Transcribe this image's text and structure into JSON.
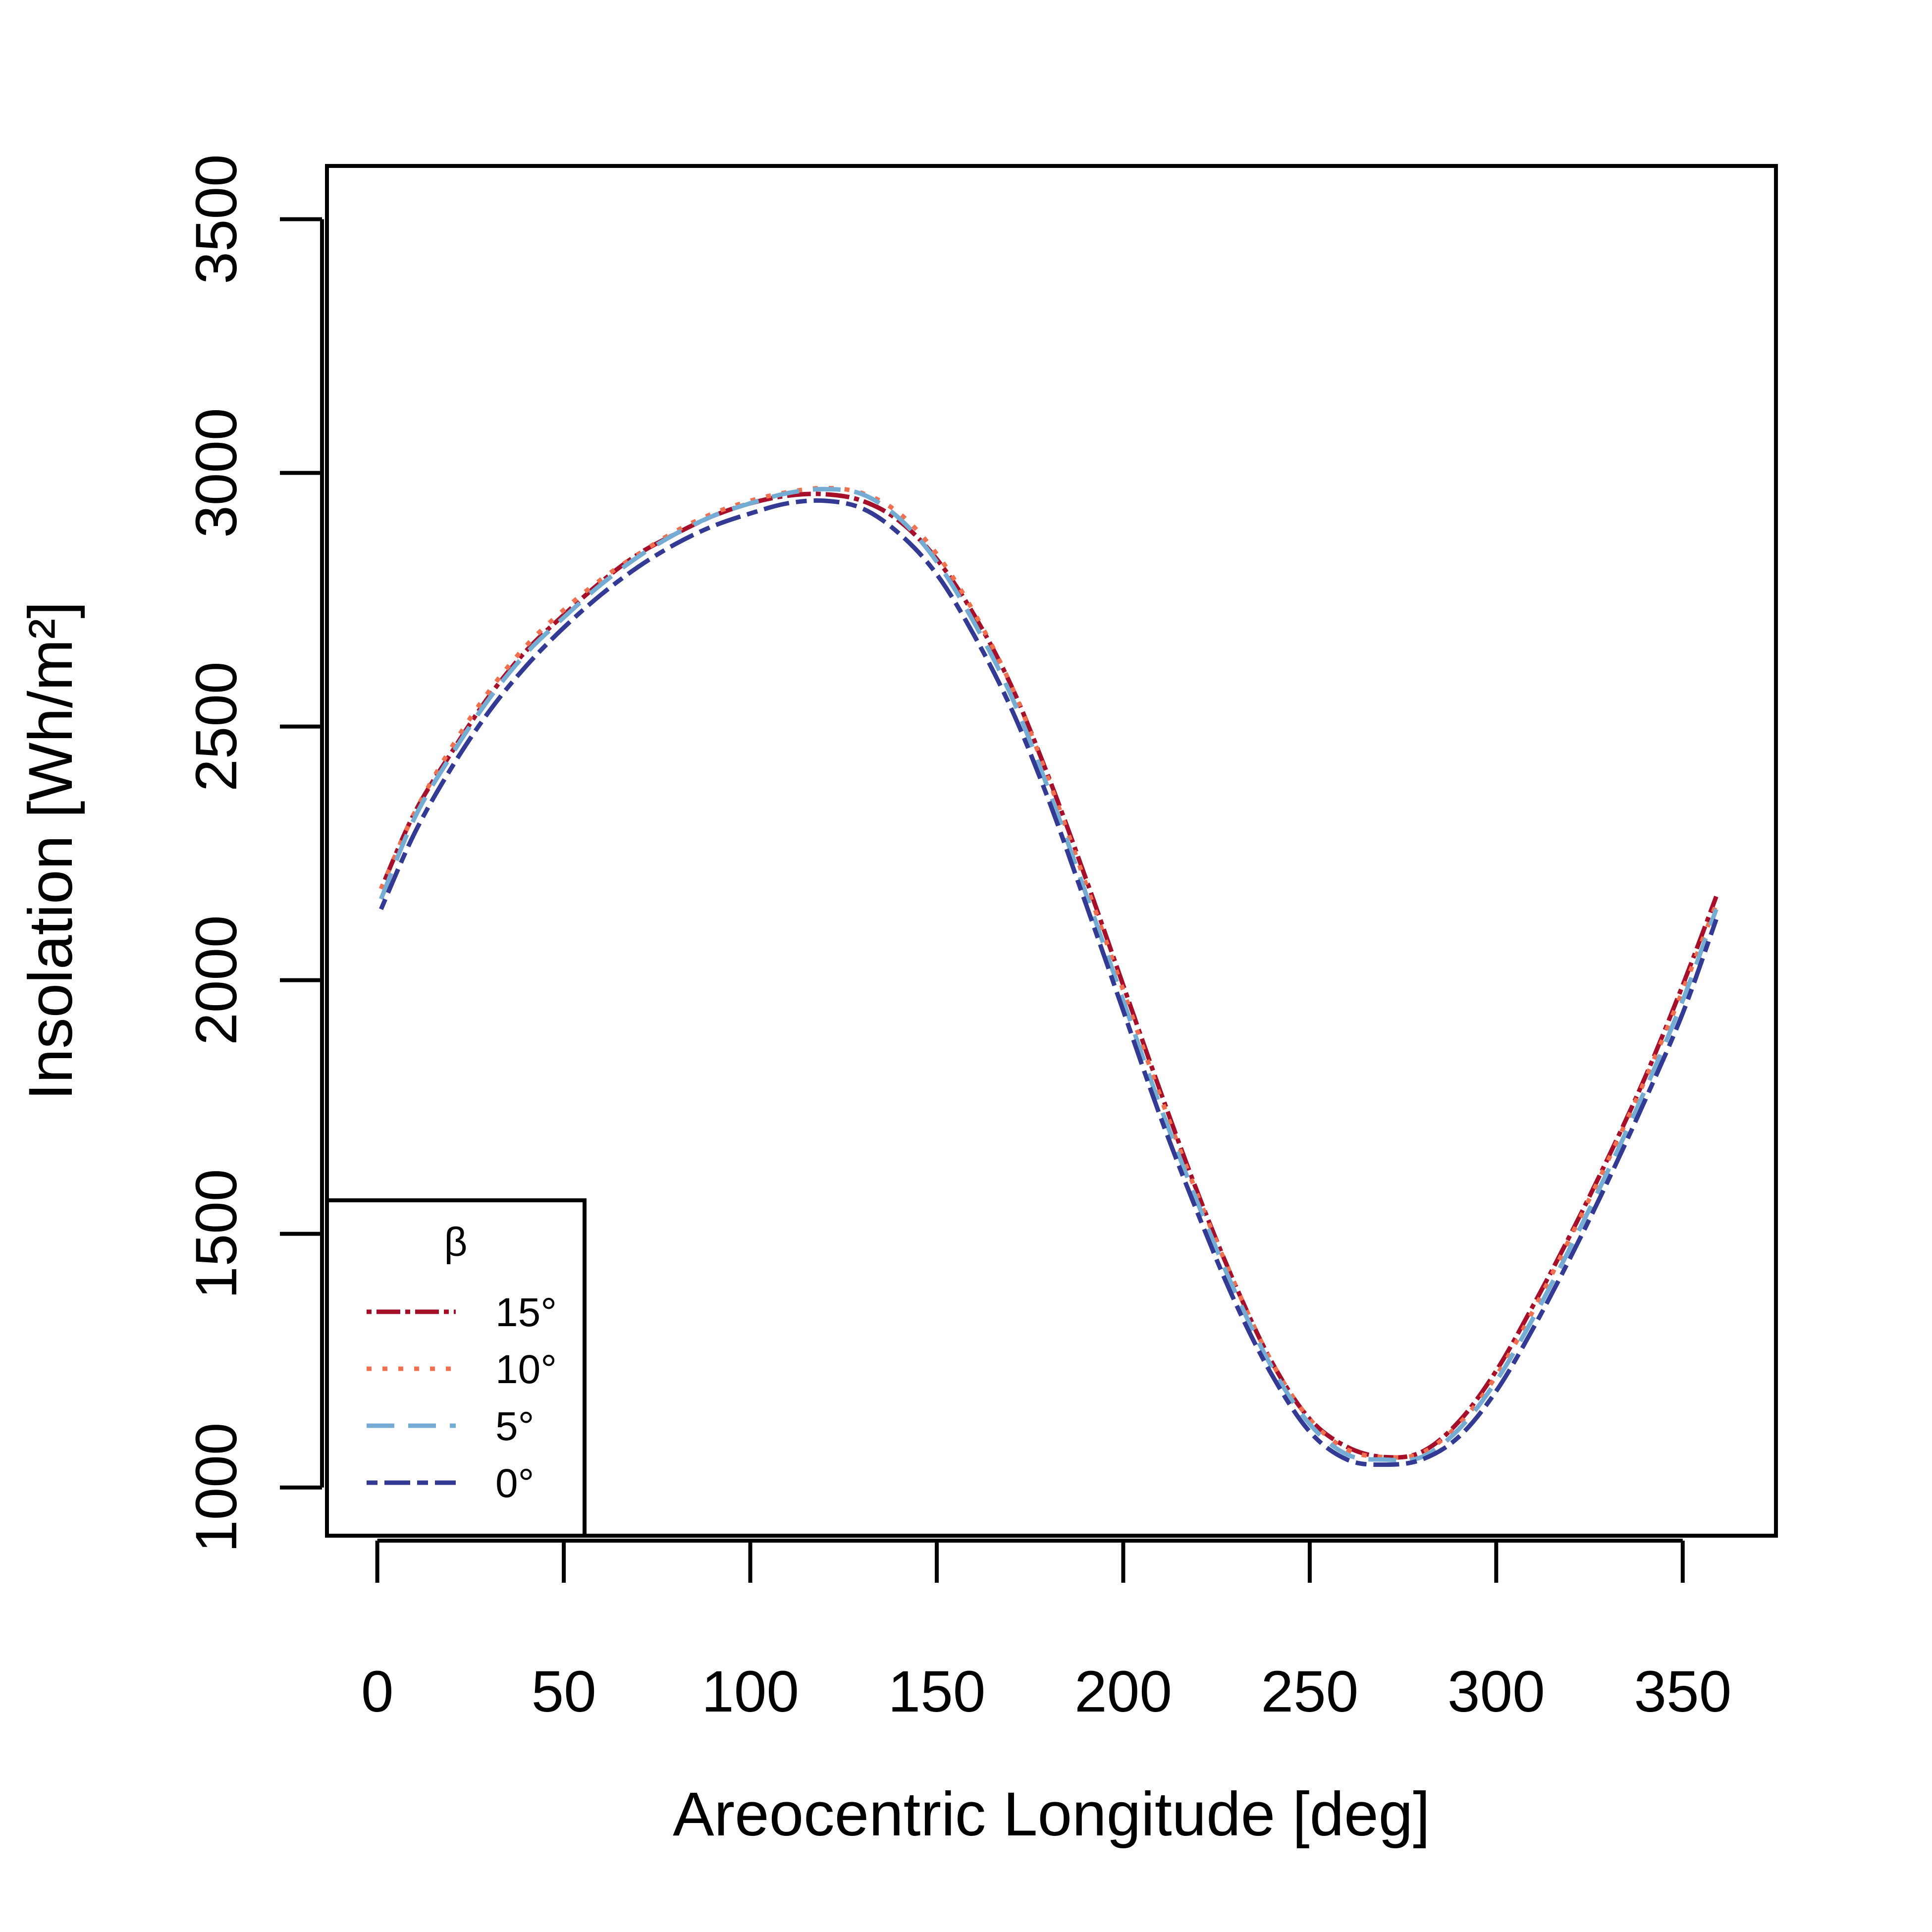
{
  "chart_data": {
    "type": "line",
    "xlabel": "Areocentric Longitude [deg]",
    "ylabel": "Insolation [Wh/m²]",
    "xlim": [
      -13.5,
      375
    ],
    "ylim": [
      905,
      3605
    ],
    "xticks": [
      0,
      50,
      100,
      150,
      200,
      250,
      300,
      350
    ],
    "yticks": [
      1000,
      1500,
      2000,
      2500,
      3000,
      3500
    ],
    "grid": false,
    "legend": {
      "position": "bottom-left",
      "title": "β"
    },
    "x": [
      1,
      10,
      20,
      30,
      40,
      50,
      60,
      70,
      80,
      90,
      100,
      110,
      120,
      130,
      140,
      150,
      160,
      170,
      180,
      190,
      200,
      210,
      220,
      230,
      240,
      250,
      260,
      270,
      280,
      290,
      300,
      310,
      320,
      330,
      340,
      350,
      359
    ],
    "series": [
      {
        "name": "15°",
        "color": "#a50f2a",
        "dash": "10 10 48 10",
        "values": [
          2180,
          2330,
          2450,
          2560,
          2650,
          2720,
          2785,
          2840,
          2880,
          2915,
          2940,
          2955,
          2958,
          2945,
          2905,
          2830,
          2720,
          2580,
          2400,
          2200,
          1990,
          1780,
          1580,
          1400,
          1245,
          1135,
          1080,
          1060,
          1070,
          1130,
          1230,
          1360,
          1500,
          1650,
          1810,
          1990,
          2165
        ]
      },
      {
        "name": "10°",
        "color": "#f0704f",
        "dash": "10 22",
        "values": [
          2180,
          2330,
          2460,
          2570,
          2660,
          2730,
          2790,
          2840,
          2885,
          2920,
          2945,
          2962,
          2970,
          2960,
          2920,
          2840,
          2725,
          2580,
          2395,
          2190,
          1980,
          1770,
          1575,
          1400,
          1245,
          1135,
          1075,
          1060,
          1068,
          1125,
          1220,
          1350,
          1495,
          1645,
          1805,
          1980,
          2150
        ]
      },
      {
        "name": "5°",
        "color": "#74acd3",
        "dash": "56 28",
        "values": [
          2160,
          2320,
          2445,
          2555,
          2645,
          2715,
          2780,
          2835,
          2880,
          2915,
          2940,
          2960,
          2968,
          2958,
          2910,
          2825,
          2705,
          2560,
          2375,
          2170,
          1960,
          1750,
          1560,
          1385,
          1235,
          1125,
          1065,
          1055,
          1060,
          1115,
          1210,
          1335,
          1475,
          1625,
          1785,
          1960,
          2140
        ]
      },
      {
        "name": "0°",
        "color": "#323a93",
        "dash": "22 14 52 14",
        "values": [
          2140,
          2290,
          2420,
          2530,
          2620,
          2695,
          2760,
          2815,
          2860,
          2895,
          2920,
          2940,
          2945,
          2930,
          2880,
          2800,
          2680,
          2535,
          2355,
          2150,
          1940,
          1730,
          1540,
          1365,
          1220,
          1110,
          1055,
          1045,
          1055,
          1100,
          1190,
          1315,
          1455,
          1605,
          1765,
          1935,
          2120
        ]
      }
    ]
  }
}
